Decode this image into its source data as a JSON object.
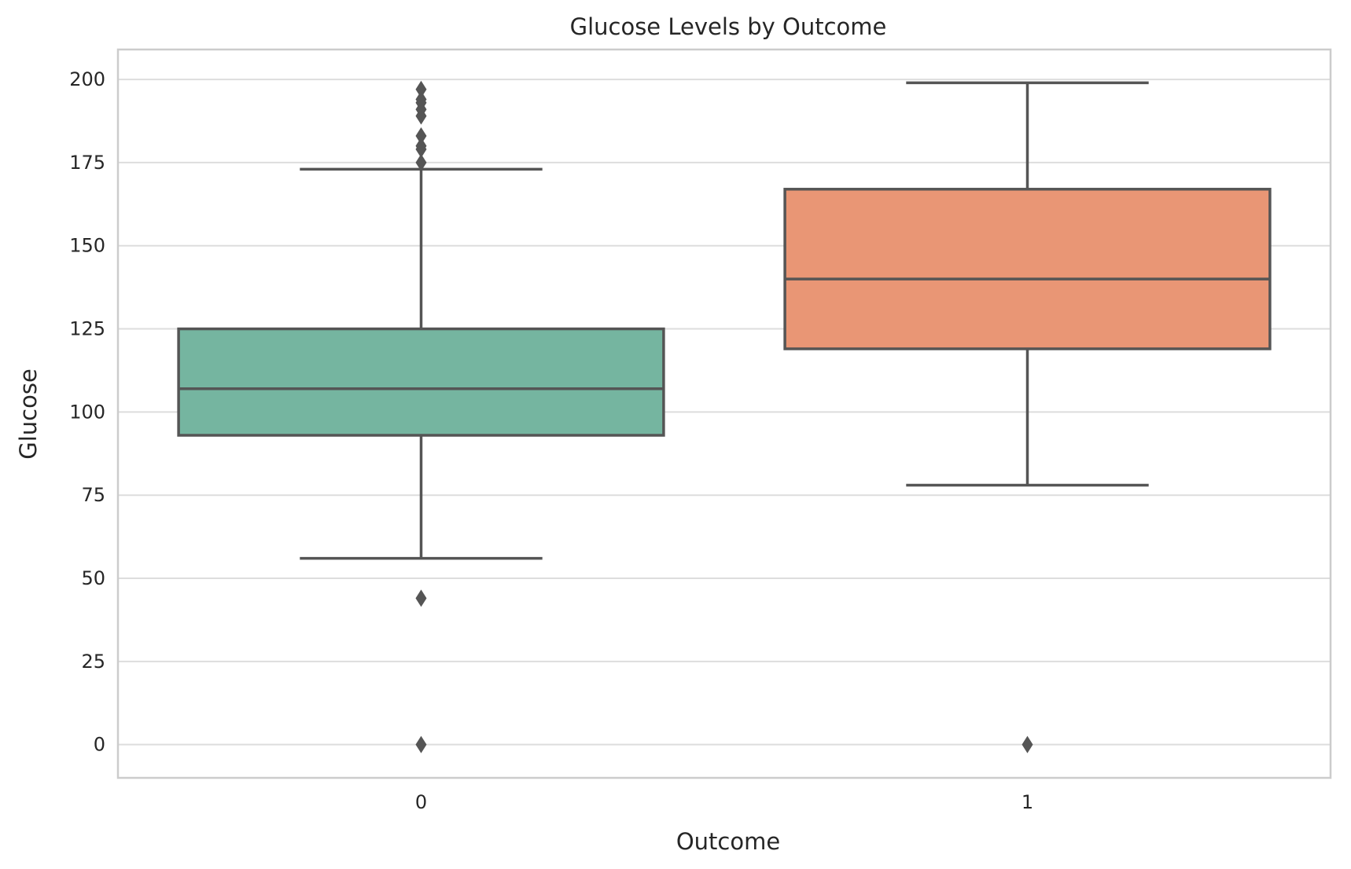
{
  "chart_data": {
    "type": "box",
    "title": "Glucose Levels by Outcome",
    "xlabel": "Outcome",
    "ylabel": "Glucose",
    "ylim": [
      -10,
      209
    ],
    "yticks": [
      0,
      25,
      50,
      75,
      100,
      125,
      150,
      175,
      200
    ],
    "grid": true,
    "categories": [
      "0",
      "1"
    ],
    "boxes": [
      {
        "category": "0",
        "color": "#75b5a0",
        "whisker_low": 56,
        "q1": 93,
        "median": 107,
        "q3": 125,
        "whisker_high": 173,
        "outliers": [
          0,
          44,
          175,
          179,
          180,
          183,
          189,
          191,
          193,
          194,
          197
        ]
      },
      {
        "category": "1",
        "color": "#e99675",
        "whisker_low": 78,
        "q1": 119,
        "median": 140,
        "q3": 167,
        "whisker_high": 199,
        "outliers": [
          0
        ]
      }
    ]
  }
}
